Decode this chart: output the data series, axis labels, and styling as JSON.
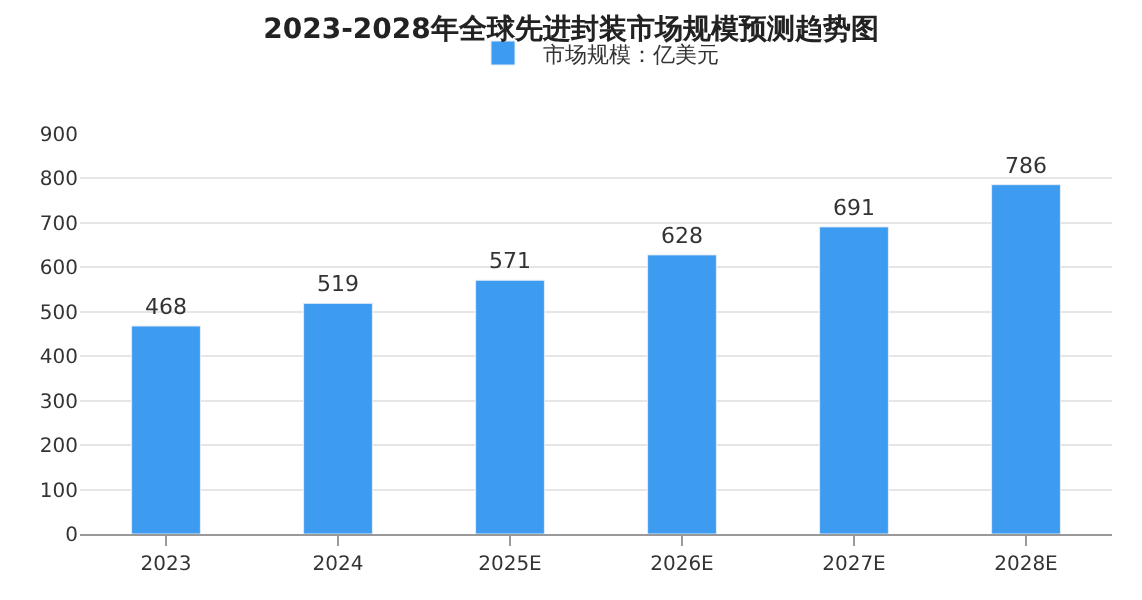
{
  "chart_data": {
    "type": "bar",
    "title": "2023-2028年全球先进封装市场规模预测趋势图",
    "categories": [
      "2023",
      "2024",
      "2025E",
      "2026E",
      "2027E",
      "2028E"
    ],
    "series": [
      {
        "name": "市场规模：亿美元",
        "color": "#3d9bf0",
        "values": [
          468,
          519,
          571,
          628,
          691,
          786
        ]
      }
    ],
    "ylim": [
      0,
      900
    ],
    "yticks": [
      0,
      100,
      200,
      300,
      400,
      500,
      600,
      700,
      800,
      900
    ],
    "grid": "y",
    "legend": "top",
    "data_labels": true
  }
}
